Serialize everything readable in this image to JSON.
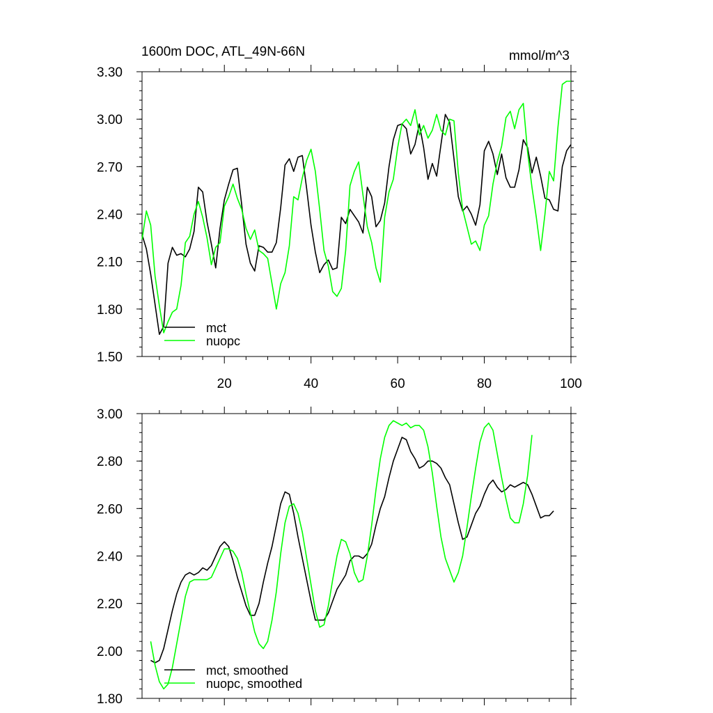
{
  "chart_data": [
    {
      "type": "line",
      "title": "1600m DOC, ATL_49N-66N",
      "units": "mmol/m^3",
      "xlim": [
        1,
        100
      ],
      "ylim": [
        1.5,
        3.3
      ],
      "yticks": [
        "1.50",
        "1.80",
        "2.10",
        "2.40",
        "2.70",
        "3.00",
        "3.30"
      ],
      "xticks": [
        "20",
        "40",
        "60",
        "80",
        "100"
      ],
      "series": [
        {
          "name": "mct",
          "color": "#000000",
          "values": [
            2.27,
            2.18,
            2.02,
            1.83,
            1.64,
            1.69,
            2.09,
            2.19,
            2.14,
            2.15,
            2.13,
            2.18,
            2.29,
            2.57,
            2.54,
            2.35,
            2.21,
            2.06,
            2.31,
            2.49,
            2.59,
            2.68,
            2.69,
            2.46,
            2.21,
            2.09,
            2.04,
            2.2,
            2.19,
            2.16,
            2.16,
            2.22,
            2.44,
            2.71,
            2.75,
            2.67,
            2.76,
            2.77,
            2.56,
            2.33,
            2.16,
            2.03,
            2.08,
            2.11,
            2.05,
            2.06,
            2.38,
            2.34,
            2.43,
            2.39,
            2.35,
            2.28,
            2.57,
            2.51,
            2.32,
            2.36,
            2.47,
            2.7,
            2.87,
            2.96,
            2.97,
            2.94,
            2.78,
            2.84,
            2.97,
            2.82,
            2.62,
            2.72,
            2.64,
            2.84,
            3.03,
            2.98,
            2.75,
            2.51,
            2.42,
            2.45,
            2.4,
            2.33,
            2.46,
            2.8,
            2.86,
            2.78,
            2.65,
            2.78,
            2.63,
            2.57,
            2.57,
            2.68,
            2.87,
            2.82,
            2.66,
            2.76,
            2.64,
            2.5,
            2.49,
            2.43,
            2.42,
            2.7,
            2.8,
            2.84
          ]
        },
        {
          "name": "nuopc",
          "color": "#00ff00",
          "values": [
            2.24,
            2.42,
            2.33,
            2.01,
            1.82,
            1.65,
            1.72,
            1.78,
            1.8,
            1.95,
            2.22,
            2.26,
            2.4,
            2.48,
            2.38,
            2.25,
            2.08,
            2.19,
            2.22,
            2.45,
            2.51,
            2.59,
            2.5,
            2.43,
            2.31,
            2.24,
            2.3,
            2.17,
            2.15,
            2.12,
            1.96,
            1.8,
            1.96,
            2.03,
            2.2,
            2.51,
            2.49,
            2.63,
            2.74,
            2.81,
            2.67,
            2.43,
            2.17,
            2.07,
            1.91,
            1.88,
            1.93,
            2.17,
            2.58,
            2.67,
            2.73,
            2.52,
            2.32,
            2.22,
            2.06,
            1.97,
            2.38,
            2.54,
            2.62,
            2.82,
            2.97,
            3.0,
            2.96,
            3.06,
            2.9,
            2.96,
            2.88,
            2.93,
            3.03,
            2.93,
            2.9,
            3.0,
            2.99,
            2.66,
            2.43,
            2.32,
            2.21,
            2.23,
            2.17,
            2.33,
            2.39,
            2.59,
            2.73,
            2.83,
            3.01,
            3.05,
            2.94,
            3.06,
            3.1,
            2.79,
            2.57,
            2.38,
            2.17,
            2.4,
            2.67,
            2.61,
            2.95,
            3.22,
            3.24,
            3.24
          ]
        }
      ]
    },
    {
      "type": "line",
      "title": "",
      "xlim": [
        1,
        100
      ],
      "ylim": [
        1.8,
        3.0
      ],
      "yticks": [
        "1.80",
        "2.00",
        "2.20",
        "2.40",
        "2.60",
        "2.80",
        "3.00"
      ],
      "series": [
        {
          "name": "mct, smoothed",
          "color": "#000000",
          "x_start": 3,
          "values": [
            1.96,
            1.95,
            1.96,
            2.01,
            2.09,
            2.17,
            2.24,
            2.29,
            2.32,
            2.33,
            2.32,
            2.33,
            2.35,
            2.34,
            2.36,
            2.4,
            2.44,
            2.46,
            2.44,
            2.38,
            2.31,
            2.25,
            2.19,
            2.15,
            2.15,
            2.2,
            2.29,
            2.37,
            2.44,
            2.53,
            2.62,
            2.67,
            2.66,
            2.58,
            2.48,
            2.39,
            2.3,
            2.21,
            2.13,
            2.13,
            2.13,
            2.16,
            2.21,
            2.26,
            2.29,
            2.32,
            2.38,
            2.4,
            2.4,
            2.39,
            2.41,
            2.45,
            2.53,
            2.6,
            2.65,
            2.73,
            2.8,
            2.85,
            2.9,
            2.89,
            2.84,
            2.81,
            2.77,
            2.78,
            2.8,
            2.8,
            2.79,
            2.77,
            2.73,
            2.7,
            2.62,
            2.54,
            2.47,
            2.48,
            2.53,
            2.58,
            2.61,
            2.66,
            2.7,
            2.72,
            2.69,
            2.67,
            2.68,
            2.7,
            2.69,
            2.7,
            2.71,
            2.7,
            2.66,
            2.61,
            2.56,
            2.57,
            2.57,
            2.59
          ]
        },
        {
          "name": "nuopc, smoothed",
          "color": "#00ff00",
          "x_start": 3,
          "values": [
            2.04,
            1.94,
            1.87,
            1.84,
            1.86,
            1.93,
            2.03,
            2.13,
            2.23,
            2.29,
            2.3,
            2.3,
            2.3,
            2.3,
            2.31,
            2.35,
            2.39,
            2.43,
            2.43,
            2.42,
            2.39,
            2.33,
            2.24,
            2.16,
            2.08,
            2.03,
            2.01,
            2.04,
            2.13,
            2.25,
            2.41,
            2.54,
            2.61,
            2.62,
            2.58,
            2.5,
            2.39,
            2.28,
            2.17,
            2.1,
            2.11,
            2.19,
            2.3,
            2.4,
            2.47,
            2.46,
            2.41,
            2.33,
            2.29,
            2.3,
            2.4,
            2.53,
            2.68,
            2.81,
            2.9,
            2.95,
            2.97,
            2.96,
            2.95,
            2.96,
            2.94,
            2.95,
            2.95,
            2.93,
            2.86,
            2.75,
            2.61,
            2.48,
            2.39,
            2.34,
            2.29,
            2.33,
            2.4,
            2.52,
            2.65,
            2.77,
            2.88,
            2.94,
            2.96,
            2.93,
            2.83,
            2.73,
            2.64,
            2.56,
            2.54,
            2.54,
            2.62,
            2.74,
            2.91
          ]
        }
      ]
    }
  ]
}
